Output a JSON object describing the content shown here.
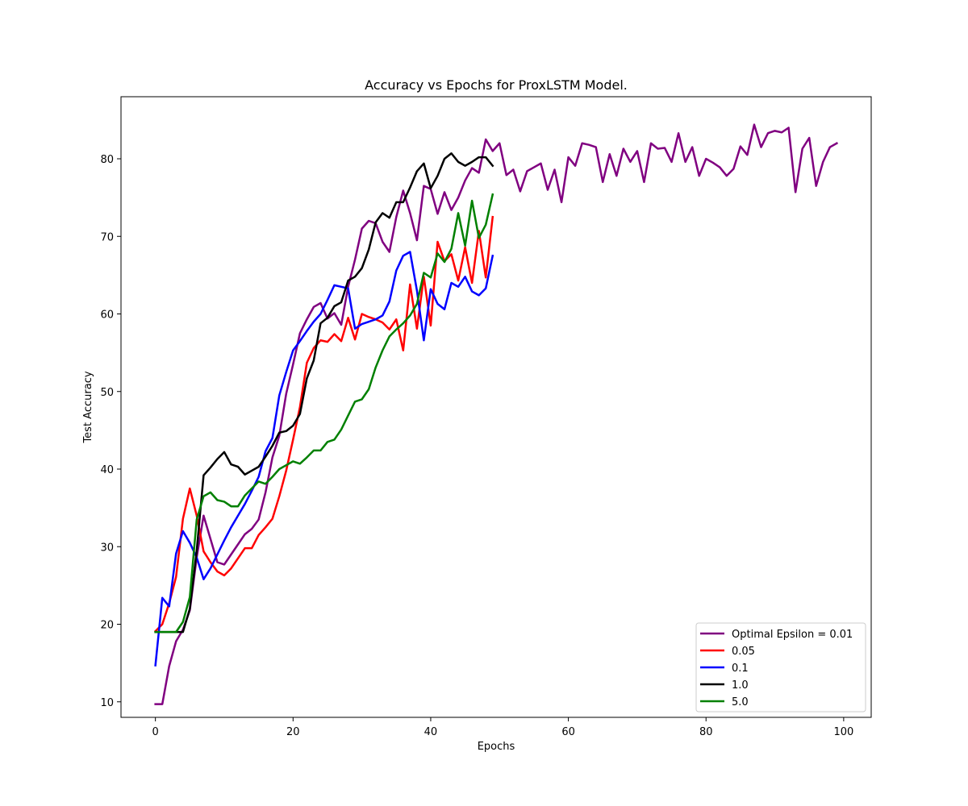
{
  "chart_data": {
    "type": "line",
    "title": "Accuracy vs Epochs for ProxLSTM Model.",
    "xlabel": "Epochs",
    "ylabel": "Test Accuracy",
    "xlim": [
      -5,
      104
    ],
    "ylim": [
      8,
      88
    ],
    "xticks": [
      0,
      20,
      40,
      60,
      80,
      100
    ],
    "yticks": [
      10,
      20,
      30,
      40,
      50,
      60,
      70,
      80
    ],
    "grid": false,
    "legend_position": "lower-right",
    "series": [
      {
        "name": "Optimal Epsilon = 0.01",
        "color": "#800080",
        "values": [
          9.7,
          9.7,
          14.6,
          17.8,
          19.3,
          21.8,
          28.6,
          34.0,
          31.0,
          28.0,
          27.7,
          29.0,
          30.3,
          31.6,
          32.3,
          33.5,
          37.0,
          41.5,
          44.3,
          49.7,
          53.5,
          57.5,
          59.3,
          60.9,
          61.4,
          59.4,
          60.1,
          58.6,
          63.5,
          67.0,
          71.0,
          72.0,
          71.7,
          69.3,
          68.0,
          72.5,
          75.9,
          73.0,
          69.5,
          76.5,
          76.1,
          72.9,
          75.7,
          73.4,
          75.0,
          77.2,
          78.8,
          78.2,
          82.5,
          81.0,
          82.0,
          77.9,
          78.6,
          75.8,
          78.4,
          78.9,
          79.4,
          76.0,
          78.6,
          74.4,
          80.2,
          79.1,
          82.0,
          81.8,
          81.5,
          77.0,
          80.6,
          77.8,
          81.3,
          79.6,
          81.0,
          77.0,
          82.0,
          81.3,
          81.4,
          79.6,
          83.3,
          79.6,
          81.5,
          77.8,
          80.0,
          79.5,
          78.9,
          77.8,
          78.7,
          81.6,
          80.5,
          84.4,
          81.5,
          83.3,
          83.6,
          83.4,
          84.0,
          75.7,
          81.3,
          82.7,
          76.5,
          79.6,
          81.5,
          82.0
        ]
      },
      {
        "name": "0.05",
        "color": "#ff0000",
        "values": [
          19.1,
          20.0,
          22.7,
          26.1,
          33.6,
          37.5,
          34.0,
          29.4,
          28.0,
          26.8,
          26.3,
          27.2,
          28.5,
          29.8,
          29.8,
          31.5,
          32.5,
          33.6,
          36.5,
          39.8,
          43.8,
          48.0,
          53.7,
          55.6,
          56.6,
          56.4,
          57.4,
          56.5,
          59.5,
          56.7,
          60.0,
          59.6,
          59.3,
          58.9,
          58.0,
          59.3,
          55.3,
          63.8,
          58.1,
          64.8,
          58.5,
          69.3,
          66.8,
          67.7,
          64.3,
          68.6,
          64.0,
          70.7,
          64.7,
          72.5
        ]
      },
      {
        "name": "0.1",
        "color": "#0000ff",
        "values": [
          14.7,
          23.4,
          22.3,
          29.1,
          32.0,
          30.5,
          28.6,
          25.8,
          27.2,
          29.0,
          30.8,
          32.5,
          34.0,
          35.5,
          37.2,
          39.0,
          42.3,
          44.0,
          49.5,
          52.5,
          55.3,
          56.5,
          57.8,
          59.0,
          60.0,
          61.8,
          63.7,
          63.5,
          63.3,
          58.1,
          58.7,
          59.0,
          59.3,
          59.8,
          61.6,
          65.6,
          67.5,
          68.0,
          63.0,
          56.6,
          63.2,
          61.3,
          60.6,
          64.0,
          63.5,
          64.8,
          62.9,
          62.4,
          63.3,
          67.5
        ]
      },
      {
        "name": "1.0",
        "color": "#000000",
        "values": [
          19.0,
          19.0,
          19.0,
          19.0,
          19.0,
          22.0,
          29.5,
          39.2,
          40.2,
          41.3,
          42.2,
          40.6,
          40.3,
          39.3,
          39.8,
          40.3,
          41.6,
          43.0,
          44.7,
          44.9,
          45.6,
          47.1,
          51.7,
          54.0,
          58.8,
          59.5,
          61.0,
          61.5,
          64.3,
          64.8,
          65.9,
          68.3,
          71.8,
          73.0,
          72.4,
          74.4,
          74.4,
          76.3,
          78.4,
          79.4,
          76.2,
          77.8,
          80.0,
          80.7,
          79.6,
          79.1,
          79.6,
          80.2,
          80.2,
          79.1
        ]
      },
      {
        "name": "5.0",
        "color": "#008000",
        "values": [
          19.0,
          19.0,
          19.0,
          19.0,
          20.3,
          23.5,
          33.5,
          36.5,
          37.0,
          36.0,
          35.8,
          35.2,
          35.2,
          36.6,
          37.5,
          38.4,
          38.1,
          39.0,
          40.0,
          40.5,
          41.0,
          40.7,
          41.5,
          42.4,
          42.4,
          43.5,
          43.8,
          45.1,
          46.9,
          48.7,
          49.0,
          50.3,
          53.1,
          55.3,
          57.1,
          58.0,
          58.8,
          59.8,
          61.3,
          65.3,
          64.7,
          67.8,
          66.7,
          68.4,
          73.0,
          68.8,
          74.6,
          69.8,
          71.5,
          75.4
        ]
      }
    ]
  }
}
